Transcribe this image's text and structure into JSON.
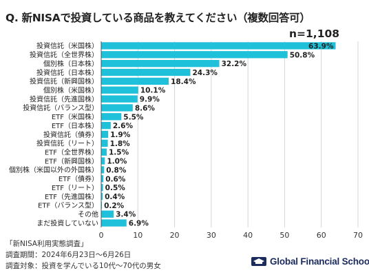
{
  "title": "Q. 新NISAで投資している商品を教えてください（複数回答可）",
  "subtitle": "n=1,108",
  "notes": {
    "survey_name": "「新NISA利用実態調査」",
    "period": "調査期間：2024年6月23日〜6月26日",
    "target": "調査対象：投資を学んでいる10代〜70代の男女"
  },
  "logo": {
    "text": "Global Financial School",
    "icon": "school-crest-icon"
  },
  "colors": {
    "bar": "#1ec1d9",
    "grid": "#cfd8dc",
    "text": "#222222",
    "logo": "#1b2b5e"
  },
  "chart_data": {
    "type": "bar",
    "orientation": "horizontal",
    "categories": [
      "投資信託（米国株）",
      "投資信託（全世界株）",
      "個別株（日本株）",
      "投資信託（日本株）",
      "投資信託（新興国株）",
      "個別株（米国株）",
      "投資信託（先進国株）",
      "投資信託（バランス型）",
      "ETF（米国株）",
      "ETF（日本株）",
      "投資信託（債券）",
      "投資信託（リート）",
      "ETF（全世界株）",
      "ETF（新興国株）",
      "個別株（米国以外の外国株）",
      "ETF（債券）",
      "ETF（リート）",
      "ETF（先進国株）",
      "ETF（バランス型）",
      "その他",
      "まだ投資していない"
    ],
    "values": [
      63.9,
      50.8,
      32.2,
      24.3,
      18.4,
      10.1,
      9.9,
      8.6,
      5.5,
      2.6,
      1.9,
      1.8,
      1.5,
      1.0,
      0.8,
      0.6,
      0.5,
      0.4,
      0.2,
      3.4,
      6.9
    ],
    "value_labels": [
      "63.9%",
      "50.8%",
      "32.2%",
      "24.3%",
      "18.4%",
      "10.1%",
      "9.9%",
      "8.6%",
      "5.5%",
      "2.6%",
      "1.9%",
      "1.8%",
      "1.5%",
      "1.0%",
      "0.8%",
      "0.6%",
      "0.5%",
      "0.4%",
      "0.2%",
      "3.4%",
      "6.9%"
    ],
    "xlim": [
      0,
      70
    ],
    "xticks": [
      0,
      10,
      20,
      30,
      40,
      50,
      60,
      70
    ],
    "grid": true,
    "legend": "none"
  }
}
